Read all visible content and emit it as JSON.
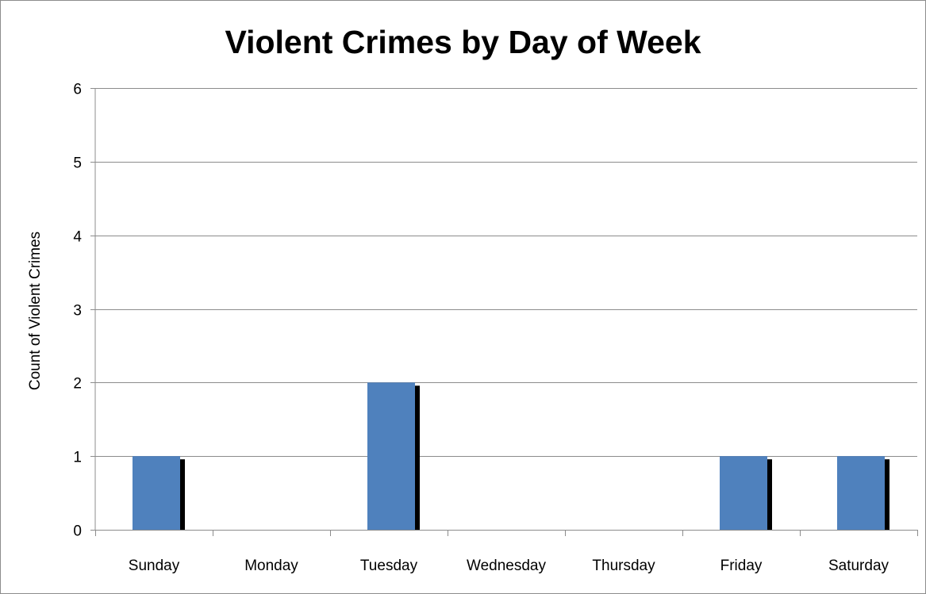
{
  "chart_data": {
    "type": "bar",
    "title": "Violent Crimes by Day of Week",
    "xlabel": "",
    "ylabel": "Count of Violent Crimes",
    "categories": [
      "Sunday",
      "Monday",
      "Tuesday",
      "Wednesday",
      "Thursday",
      "Friday",
      "Saturday"
    ],
    "values": [
      1,
      0,
      2,
      0,
      0,
      1,
      1
    ],
    "ylim": [
      0,
      6
    ],
    "yticks": [
      0,
      1,
      2,
      3,
      4,
      5,
      6
    ],
    "grid": true,
    "legend": "none",
    "colors": {
      "bar": "#4f81bd",
      "shadow": "#000000",
      "grid": "#8c8c8c",
      "axis": "#8c8c8c"
    }
  }
}
